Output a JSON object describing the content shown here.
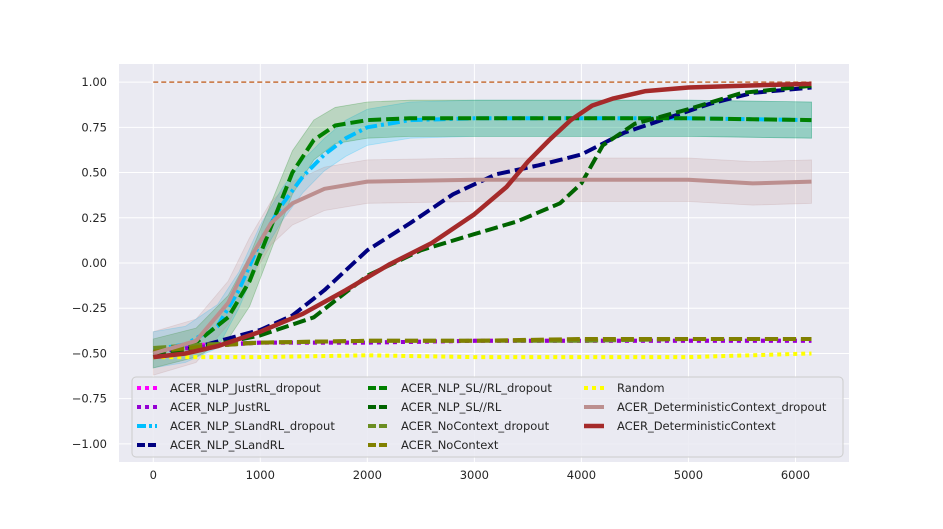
{
  "chart_data": {
    "type": "line",
    "title": "",
    "xlabel": "",
    "ylabel": "",
    "xlim": [
      -320,
      6500
    ],
    "ylim": [
      -1.1,
      1.1
    ],
    "x_ticks": [
      0,
      1000,
      2000,
      3000,
      4000,
      5000,
      6000
    ],
    "x_tick_labels": [
      "0",
      "1000",
      "2000",
      "3000",
      "4000",
      "5000",
      "6000"
    ],
    "y_ticks": [
      1.0,
      0.75,
      0.5,
      0.25,
      0.0,
      -0.25,
      -0.5,
      -0.75,
      -1.0
    ],
    "y_tick_labels": [
      "1.00",
      "0.75",
      "0.50",
      "0.25",
      "0.00",
      "−0.25",
      "−0.50",
      "−0.75",
      "−1.00"
    ],
    "grid": true,
    "background": "#eaeaf2",
    "legend_position": "lower-center",
    "reference_line": {
      "y": 1.0,
      "x_start": 0,
      "x_end": 6150,
      "color": "#c8703a",
      "style": "dashed"
    },
    "series": [
      {
        "name": "ACER_NLP_JustRL_dropout",
        "color": "#ff00ff",
        "style": "dotted",
        "width": 4,
        "x": [
          0,
          500,
          1000,
          2000,
          3000,
          4000,
          5000,
          6150
        ],
        "y": [
          -0.48,
          -0.45,
          -0.44,
          -0.44,
          -0.43,
          -0.43,
          -0.43,
          -0.43
        ]
      },
      {
        "name": "ACER_NLP_JustRL",
        "color": "#9400d3",
        "style": "dotted",
        "width": 4,
        "x": [
          0,
          500,
          1000,
          2000,
          3000,
          4000,
          5000,
          6150
        ],
        "y": [
          -0.49,
          -0.46,
          -0.44,
          -0.44,
          -0.43,
          -0.43,
          -0.43,
          -0.43
        ]
      },
      {
        "name": "ACER_NLP_SLandRL_dropout",
        "color": "#00bfff",
        "style": "dashdot",
        "width": 4,
        "x": [
          0,
          300,
          600,
          800,
          1000,
          1200,
          1400,
          1600,
          1800,
          2000,
          2400,
          3000,
          4000,
          5000,
          6150
        ],
        "y": [
          -0.48,
          -0.45,
          -0.35,
          -0.15,
          0.12,
          0.32,
          0.48,
          0.6,
          0.69,
          0.75,
          0.79,
          0.8,
          0.8,
          0.8,
          0.79
        ],
        "band": [
          0.1,
          0.1,
          0.12,
          0.1,
          0.09,
          0.09,
          0.09,
          0.09,
          0.1,
          0.1,
          0.1,
          0.1,
          0.1,
          0.1,
          0.1
        ]
      },
      {
        "name": "ACER_NLP_SLandRL",
        "color": "#000080",
        "style": "dashed",
        "width": 4,
        "x": [
          0,
          500,
          1000,
          1300,
          1600,
          2000,
          2400,
          2800,
          3200,
          3600,
          4000,
          4400,
          4800,
          5200,
          5600,
          6150
        ],
        "y": [
          -0.52,
          -0.45,
          -0.37,
          -0.29,
          -0.15,
          0.07,
          0.22,
          0.38,
          0.49,
          0.54,
          0.6,
          0.72,
          0.8,
          0.88,
          0.94,
          0.97
        ]
      },
      {
        "name": "ACER_NLP_SL//RL_dropout",
        "color": "#008000",
        "style": "dashed",
        "width": 4,
        "x": [
          0,
          400,
          700,
          900,
          1100,
          1300,
          1500,
          1700,
          2000,
          2400,
          3000,
          4000,
          5000,
          6150
        ],
        "y": [
          -0.5,
          -0.44,
          -0.3,
          -0.1,
          0.2,
          0.5,
          0.68,
          0.76,
          0.79,
          0.8,
          0.8,
          0.8,
          0.8,
          0.79
        ],
        "band": [
          0.08,
          0.08,
          0.12,
          0.14,
          0.13,
          0.12,
          0.11,
          0.1,
          0.1,
          0.1,
          0.1,
          0.1,
          0.1,
          0.1
        ]
      },
      {
        "name": "ACER_NLP_SL//RL",
        "color": "#006400",
        "style": "dashed",
        "width": 4,
        "x": [
          0,
          500,
          1000,
          1500,
          2000,
          2500,
          3000,
          3400,
          3800,
          4000,
          4200,
          4500,
          5000,
          5500,
          6150
        ],
        "y": [
          -0.52,
          -0.46,
          -0.4,
          -0.3,
          -0.07,
          0.07,
          0.16,
          0.23,
          0.33,
          0.44,
          0.65,
          0.77,
          0.85,
          0.94,
          0.98
        ]
      },
      {
        "name": "ACER_NoContext_dropout",
        "color": "#6b8e23",
        "style": "dashed",
        "width": 4,
        "x": [
          0,
          500,
          1000,
          2000,
          3000,
          4000,
          5000,
          6150
        ],
        "y": [
          -0.47,
          -0.45,
          -0.44,
          -0.43,
          -0.43,
          -0.43,
          -0.42,
          -0.42
        ]
      },
      {
        "name": "ACER_NoContext",
        "color": "#808000",
        "style": "dashed",
        "width": 4,
        "x": [
          0,
          500,
          1000,
          2000,
          3000,
          4000,
          5000,
          6150
        ],
        "y": [
          -0.49,
          -0.46,
          -0.44,
          -0.43,
          -0.43,
          -0.42,
          -0.42,
          -0.42
        ]
      },
      {
        "name": "Random",
        "color": "#ffff00",
        "style": "dotted",
        "width": 4,
        "x": [
          0,
          1000,
          2000,
          3000,
          4000,
          5000,
          6150
        ],
        "y": [
          -0.52,
          -0.52,
          -0.51,
          -0.52,
          -0.52,
          -0.52,
          -0.5
        ]
      },
      {
        "name": "ACER_DeterministicContext_dropout",
        "color": "#bc8f8f",
        "style": "solid",
        "width": 4,
        "x": [
          0,
          400,
          700,
          900,
          1100,
          1300,
          1600,
          2000,
          3000,
          4000,
          5000,
          5600,
          6150
        ],
        "y": [
          -0.5,
          -0.43,
          -0.22,
          0.02,
          0.22,
          0.33,
          0.41,
          0.45,
          0.46,
          0.46,
          0.46,
          0.44,
          0.45
        ],
        "band": [
          0.12,
          0.12,
          0.12,
          0.12,
          0.12,
          0.12,
          0.12,
          0.12,
          0.12,
          0.12,
          0.12,
          0.12,
          0.12
        ]
      },
      {
        "name": "ACER_DeterministicContext",
        "color": "#a52a2a",
        "style": "solid",
        "width": 4.5,
        "x": [
          0,
          300,
          600,
          1000,
          1400,
          1800,
          2200,
          2600,
          3000,
          3300,
          3500,
          3700,
          3900,
          4100,
          4300,
          4600,
          5000,
          5500,
          6150
        ],
        "y": [
          -0.52,
          -0.5,
          -0.46,
          -0.38,
          -0.28,
          -0.15,
          -0.01,
          0.11,
          0.27,
          0.42,
          0.56,
          0.68,
          0.79,
          0.87,
          0.91,
          0.95,
          0.97,
          0.98,
          0.99
        ]
      }
    ]
  }
}
